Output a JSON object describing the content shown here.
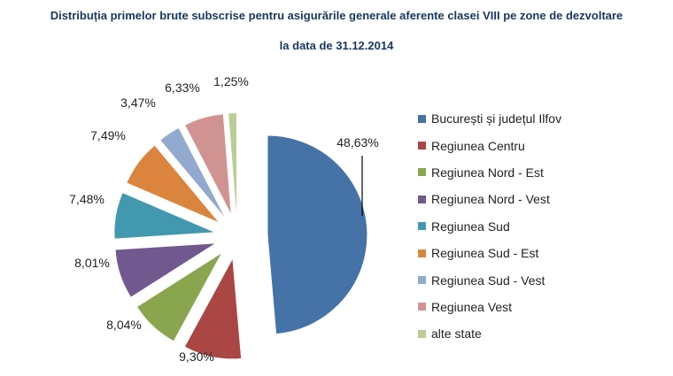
{
  "chart_data": {
    "type": "pie",
    "title": "Distribuția primelor brute subscrise pentru asigurările generale aferente clasei VIII pe zone de dezvoltare",
    "subtitle": "la data de 31.12.2014",
    "legend_position": "right",
    "slices": [
      {
        "name": "București și județul Ilfov",
        "value": 48.63,
        "label": "48,63%",
        "color": "#4572a7"
      },
      {
        "name": "Regiunea Centru",
        "value": 9.3,
        "label": "9,30%",
        "color": "#aa4643"
      },
      {
        "name": "Regiunea Nord - Est",
        "value": 8.04,
        "label": "8,04%",
        "color": "#89a54e"
      },
      {
        "name": "Regiunea Nord - Vest",
        "value": 8.01,
        "label": "8,01%",
        "color": "#71588f"
      },
      {
        "name": "Regiunea Sud",
        "value": 7.48,
        "label": "7,48%",
        "color": "#4198af"
      },
      {
        "name": "Regiunea Sud - Est",
        "value": 7.49,
        "label": "7,49%",
        "color": "#db843d"
      },
      {
        "name": "Regiunea Sud - Vest",
        "value": 3.47,
        "label": "3,47%",
        "color": "#93a9cf"
      },
      {
        "name": "Regiunea Vest",
        "value": 6.33,
        "label": "6,33%",
        "color": "#d19392"
      },
      {
        "name": "alte state",
        "value": 1.25,
        "label": "1,25%",
        "color": "#b9cd96"
      }
    ]
  }
}
